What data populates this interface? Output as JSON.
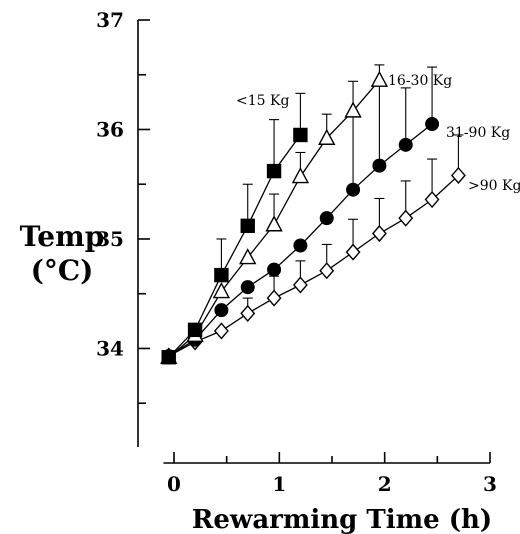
{
  "chart_data": {
    "type": "line",
    "xlabel": "Rewarming Time (h)",
    "ylabel": [
      "Temp",
      "(°C)"
    ],
    "xlim": [
      -0.2,
      3
    ],
    "ylim": [
      33.1,
      37
    ],
    "xticks": [
      0,
      1,
      2,
      3
    ],
    "yticks": [
      34,
      35,
      36,
      37
    ],
    "grid": false,
    "legend": "inline labels at line ends",
    "series": [
      {
        "name": "<15 Kg",
        "marker": "square",
        "filled": true,
        "x": [
          -0.05,
          0.2,
          0.45,
          0.7,
          0.95,
          1.2
        ],
        "y": [
          33.92,
          34.17,
          34.67,
          35.12,
          35.62,
          35.95
        ],
        "err": [
          0,
          0,
          0.33,
          0.38,
          0.47,
          0.38
        ]
      },
      {
        "name": "16-30 Kg",
        "marker": "triangle",
        "filled": false,
        "x": [
          -0.05,
          0.2,
          0.45,
          0.7,
          0.95,
          1.2,
          1.45,
          1.7,
          1.95
        ],
        "y": [
          33.92,
          34.12,
          34.52,
          34.83,
          35.13,
          35.57,
          35.92,
          36.17,
          36.45
        ],
        "err": [
          0,
          0,
          0,
          0,
          0.28,
          0.22,
          0.22,
          0.27,
          0.14
        ]
      },
      {
        "name": "31-90 Kg",
        "marker": "circle",
        "filled": true,
        "x": [
          -0.05,
          0.2,
          0.45,
          0.7,
          0.95,
          1.2,
          1.45,
          1.7,
          1.95,
          2.2,
          2.45
        ],
        "y": [
          33.93,
          34.08,
          34.35,
          34.56,
          34.72,
          34.94,
          35.19,
          35.45,
          35.67,
          35.86,
          36.05
        ],
        "err": [
          0,
          0,
          0,
          0,
          0,
          0,
          0,
          0.68,
          0.75,
          0.52,
          0.52
        ]
      },
      {
        "name": ">90 Kg",
        "marker": "diamond",
        "filled": false,
        "x": [
          -0.05,
          0.2,
          0.45,
          0.7,
          0.95,
          1.2,
          1.45,
          1.7,
          1.95,
          2.2,
          2.45,
          2.7
        ],
        "y": [
          33.93,
          34.06,
          34.16,
          34.32,
          34.46,
          34.58,
          34.71,
          34.88,
          35.05,
          35.19,
          35.36,
          35.58
        ],
        "err": [
          0,
          0,
          0,
          0.14,
          0.2,
          0.22,
          0.24,
          0.3,
          0.32,
          0.34,
          0.37,
          0.37
        ]
      }
    ]
  }
}
